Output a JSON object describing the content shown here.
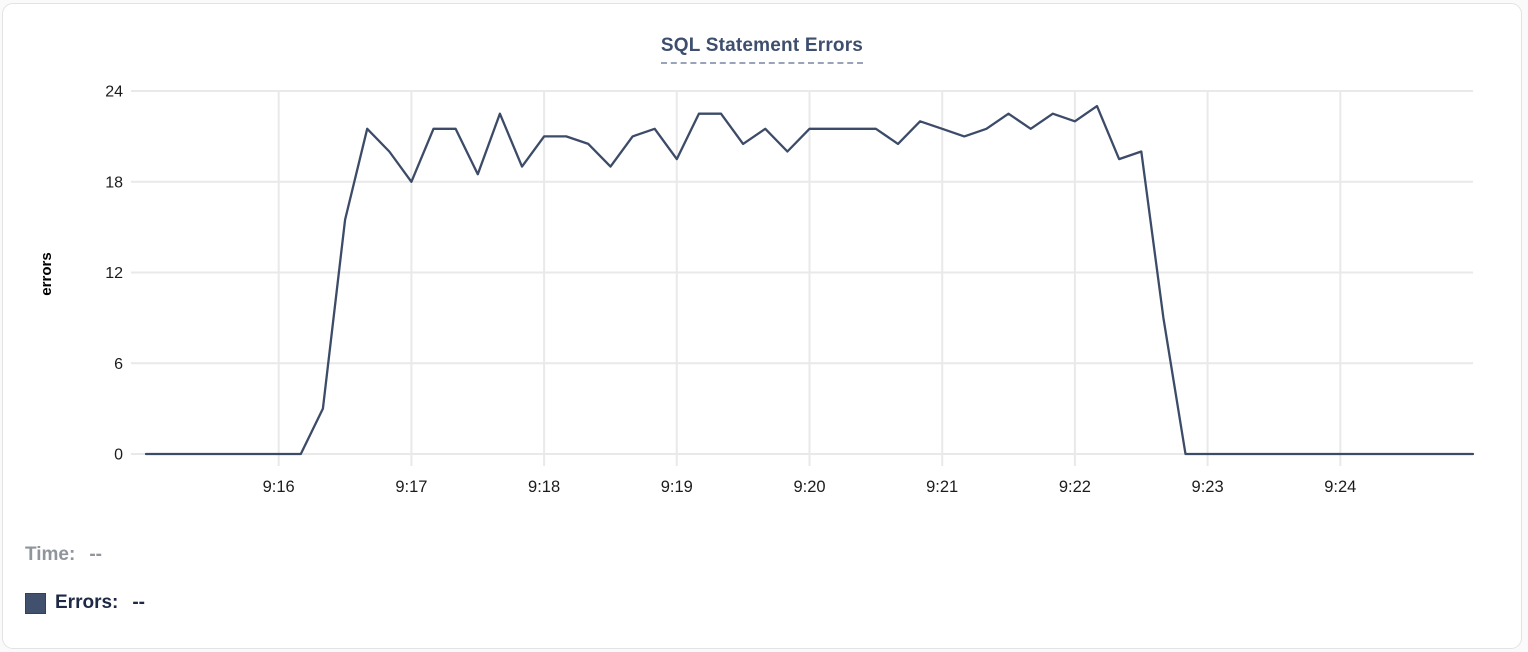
{
  "card": {
    "title": "SQL Statement Errors"
  },
  "tooltip_legend": {
    "time_label": "Time:",
    "time_value": "--",
    "errors_label": "Errors:",
    "errors_value": "--"
  },
  "colors": {
    "line": "#3c4b68",
    "title_text": "#3e4e6e",
    "title_underline": "#99a3b9",
    "grid": "#e9e9ea",
    "axis_text": "#1c1c1e",
    "legend_muted": "#8f949d",
    "legend_dark": "#1d2945",
    "swatch": "#41506c",
    "card_border": "#e2e3e5"
  },
  "chart_data": {
    "type": "line",
    "title": "SQL Statement Errors",
    "xlabel": "",
    "ylabel": "errors",
    "ylim": [
      0,
      24
    ],
    "y_ticks": [
      0,
      6,
      12,
      18,
      24
    ],
    "x_tick_labels": [
      "9:16",
      "9:17",
      "9:18",
      "9:19",
      "9:20",
      "9:21",
      "9:22",
      "9:23",
      "9:24"
    ],
    "x_range": [
      "9:15:00",
      "9:25:00"
    ],
    "interval_seconds": 10,
    "grid": true,
    "legend_position": "bottom-left",
    "series": [
      {
        "name": "Errors",
        "color": "#3c4b68",
        "x": [
          "9:15:00",
          "9:15:10",
          "9:15:20",
          "9:15:30",
          "9:15:40",
          "9:15:50",
          "9:16:00",
          "9:16:10",
          "9:16:20",
          "9:16:30",
          "9:16:40",
          "9:16:50",
          "9:17:00",
          "9:17:10",
          "9:17:20",
          "9:17:30",
          "9:17:40",
          "9:17:50",
          "9:18:00",
          "9:18:10",
          "9:18:20",
          "9:18:30",
          "9:18:40",
          "9:18:50",
          "9:19:00",
          "9:19:10",
          "9:19:20",
          "9:19:30",
          "9:19:40",
          "9:19:50",
          "9:20:00",
          "9:20:10",
          "9:20:20",
          "9:20:30",
          "9:20:40",
          "9:20:50",
          "9:21:00",
          "9:21:10",
          "9:21:20",
          "9:21:30",
          "9:21:40",
          "9:21:50",
          "9:22:00",
          "9:22:10",
          "9:22:20",
          "9:22:30",
          "9:22:40",
          "9:22:50",
          "9:23:00",
          "9:23:10",
          "9:23:20",
          "9:23:30",
          "9:23:40",
          "9:23:50",
          "9:24:00",
          "9:24:10",
          "9:24:20",
          "9:24:30",
          "9:24:40",
          "9:24:50",
          "9:25:00"
        ],
        "values": [
          0,
          0,
          0,
          0,
          0,
          0,
          0,
          0,
          3,
          15.5,
          21.5,
          20,
          18,
          21.5,
          21.5,
          18.5,
          22.5,
          19,
          21,
          21,
          20.5,
          19,
          21,
          21.5,
          19.5,
          22.5,
          22.5,
          20.5,
          21.5,
          20,
          21.5,
          21.5,
          21.5,
          21.5,
          20.5,
          22,
          21.5,
          21,
          21.5,
          22.5,
          21.5,
          22.5,
          22,
          23,
          19.5,
          20,
          9,
          0,
          0,
          0,
          0,
          0,
          0,
          0,
          0,
          0,
          0,
          0,
          0,
          0,
          0
        ]
      }
    ]
  }
}
